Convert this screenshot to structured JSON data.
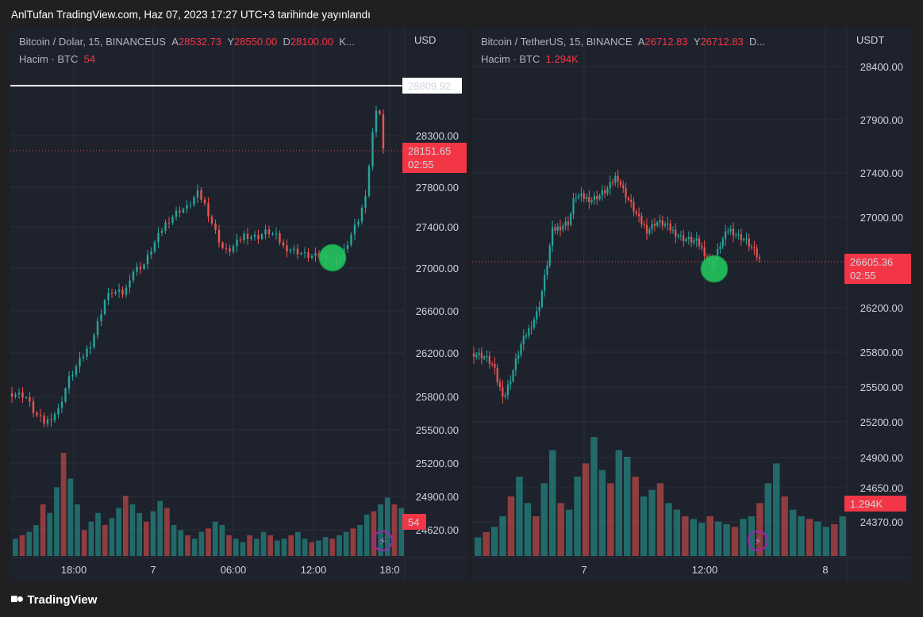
{
  "header": {
    "caption": "AnlTufan TradingView.com, Haz 07, 2023 17:27 UTC+3 tarihinde yayınlandı"
  },
  "footer": {
    "brand": "TradingView"
  },
  "colors": {
    "up": "#26a69a",
    "down": "#ef5350",
    "background": "#1e222d",
    "grid": "#2a2e39",
    "marker": "#22c55e",
    "price_label": "#f23645"
  },
  "chart_data": [
    {
      "type": "candlestick",
      "symbol": "Bitcoin / Dolar, 15, BINANCEUS",
      "ohlc": {
        "open_label": "A",
        "open": "28532.73",
        "high_label": "Y",
        "high": "28550.00",
        "low_label": "D",
        "low": "28100.00",
        "close_label": "K..."
      },
      "volume_label": "Hacim · BTC",
      "volume_value": "54",
      "currency": "USD",
      "y_ticks": [
        "28300.00",
        "27800.00",
        "27400.00",
        "27000.00",
        "26600.00",
        "26200.00",
        "25800.00",
        "25500.00",
        "25200.00",
        "24900.00",
        "24620.00"
      ],
      "x_ticks": [
        "18:00",
        "7",
        "06:00",
        "12:00",
        "18:0"
      ],
      "horizontal_line": "28809.92",
      "last_price": "28151.65",
      "countdown": "02:55",
      "volume_badge": "54",
      "marker_note": "green circle near 12:00–15:00 around 27100",
      "price_path": [
        [
          0,
          25830
        ],
        [
          2,
          25810
        ],
        [
          3.5,
          25640
        ],
        [
          5,
          25560
        ],
        [
          7,
          25680
        ],
        [
          8.5,
          25950
        ],
        [
          10.5,
          26150
        ],
        [
          12,
          26300
        ],
        [
          14,
          26700
        ],
        [
          15,
          26780
        ],
        [
          17,
          26760
        ],
        [
          18,
          26960
        ],
        [
          20,
          27040
        ],
        [
          21,
          27180
        ],
        [
          23,
          27420
        ],
        [
          25,
          27560
        ],
        [
          26.5,
          27600
        ],
        [
          28,
          27740
        ],
        [
          29,
          27640
        ],
        [
          30.5,
          27380
        ],
        [
          32,
          27160
        ],
        [
          33,
          27180
        ],
        [
          35,
          27320
        ],
        [
          37,
          27300
        ],
        [
          38.5,
          27360
        ],
        [
          40,
          27300
        ],
        [
          41,
          27200
        ],
        [
          43,
          27160
        ],
        [
          45,
          27110
        ],
        [
          47,
          27120
        ],
        [
          48,
          27070
        ],
        [
          49,
          27060
        ],
        [
          50,
          27150
        ],
        [
          51,
          27300
        ],
        [
          52.5,
          27500
        ],
        [
          53.5,
          27800
        ],
        [
          54,
          28100
        ],
        [
          54.5,
          28380
        ],
        [
          55,
          28600
        ],
        [
          55.5,
          28500
        ],
        [
          56,
          28150
        ]
      ],
      "volume_bars": [
        10,
        12,
        14,
        18,
        30,
        25,
        40,
        60,
        45,
        30,
        15,
        20,
        25,
        18,
        22,
        28,
        35,
        30,
        25,
        20,
        26,
        32,
        28,
        18,
        15,
        12,
        10,
        14,
        16,
        20,
        18,
        12,
        10,
        8,
        12,
        10,
        14,
        12,
        9,
        10,
        12,
        14,
        10,
        8,
        9,
        11,
        10,
        12,
        14,
        16,
        18,
        24,
        26,
        30,
        34,
        30,
        28
      ]
    },
    {
      "type": "candlestick",
      "symbol": "Bitcoin / TetherUS, 15, BINANCE",
      "ohlc": {
        "open_label": "A",
        "open": "26712.83",
        "high_label": "Y",
        "high": "26712.83",
        "low_label": "D..."
      },
      "volume_label": "Hacim · BTC",
      "volume_value": "1.294K",
      "currency": "USDT",
      "y_ticks": [
        "28400.00",
        "27900.00",
        "27400.00",
        "27000.00",
        "26200.00",
        "25800.00",
        "25500.00",
        "25200.00",
        "24900.00",
        "24650.00",
        "24370.00"
      ],
      "x_ticks": [
        "7",
        "12:00",
        "8"
      ],
      "last_price": "26605.36",
      "countdown": "02:55",
      "volume_badge": "1.294K",
      "marker_note": "green circle around 12:00 near 26600",
      "price_path": [
        [
          0,
          25790
        ],
        [
          2,
          25760
        ],
        [
          3.5,
          25680
        ],
        [
          4.5,
          25500
        ],
        [
          5.5,
          25420
        ],
        [
          7,
          25640
        ],
        [
          8.5,
          25880
        ],
        [
          10,
          26020
        ],
        [
          11.5,
          26180
        ],
        [
          13,
          26560
        ],
        [
          14,
          26880
        ],
        [
          15.5,
          26920
        ],
        [
          17,
          26960
        ],
        [
          18,
          27200
        ],
        [
          19.5,
          27180
        ],
        [
          21,
          27160
        ],
        [
          22.5,
          27200
        ],
        [
          24,
          27260
        ],
        [
          25.5,
          27380
        ],
        [
          26.5,
          27260
        ],
        [
          28,
          27120
        ],
        [
          29.5,
          26980
        ],
        [
          31,
          26880
        ],
        [
          32.5,
          26960
        ],
        [
          34,
          26940
        ],
        [
          35.5,
          26880
        ],
        [
          37,
          26820
        ],
        [
          38.5,
          26800
        ],
        [
          40,
          26780
        ],
        [
          41.5,
          26660
        ],
        [
          42.5,
          26560
        ],
        [
          44,
          26760
        ],
        [
          45.5,
          26900
        ],
        [
          47,
          26840
        ],
        [
          48.5,
          26800
        ],
        [
          50,
          26700
        ],
        [
          51,
          26620
        ]
      ],
      "volume_bars": [
        14,
        18,
        22,
        30,
        45,
        60,
        40,
        30,
        55,
        80,
        40,
        35,
        60,
        70,
        90,
        65,
        55,
        80,
        75,
        60,
        45,
        50,
        55,
        40,
        35,
        30,
        28,
        25,
        30,
        26,
        24,
        22,
        28,
        30,
        40,
        55,
        70,
        45,
        35,
        30,
        28,
        26,
        22,
        24,
        30
      ]
    }
  ]
}
